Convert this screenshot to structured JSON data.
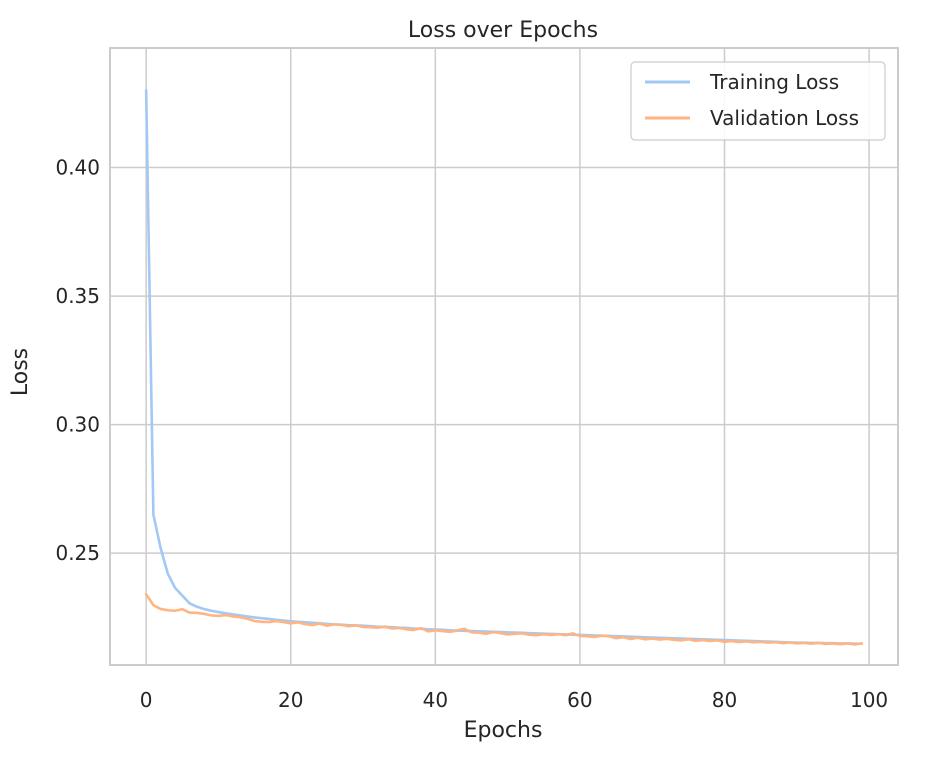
{
  "chart_data": {
    "type": "line",
    "title": "Loss over Epochs",
    "xlabel": "Epochs",
    "ylabel": "Loss",
    "xlim": [
      -5,
      104
    ],
    "ylim": [
      0.2065,
      0.4465
    ],
    "x_ticks": [
      0,
      20,
      40,
      60,
      80,
      100
    ],
    "x_tick_labels": [
      "0",
      "20",
      "40",
      "60",
      "80",
      "100"
    ],
    "y_ticks": [
      0.25,
      0.3,
      0.35,
      0.4
    ],
    "y_tick_labels": [
      "0.25",
      "0.30",
      "0.35",
      "0.40"
    ],
    "grid": true,
    "legend_position": "top-right",
    "x": [
      0,
      1,
      2,
      3,
      4,
      5,
      6,
      7,
      8,
      9,
      10,
      11,
      12,
      13,
      14,
      15,
      16,
      17,
      18,
      19,
      20,
      21,
      22,
      23,
      24,
      25,
      26,
      27,
      28,
      29,
      30,
      31,
      32,
      33,
      34,
      35,
      36,
      37,
      38,
      39,
      40,
      41,
      42,
      43,
      44,
      45,
      46,
      47,
      48,
      49,
      50,
      51,
      52,
      53,
      54,
      55,
      56,
      57,
      58,
      59,
      60,
      61,
      62,
      63,
      64,
      65,
      66,
      67,
      68,
      69,
      70,
      71,
      72,
      73,
      74,
      75,
      76,
      77,
      78,
      79,
      80,
      81,
      82,
      83,
      84,
      85,
      86,
      87,
      88,
      89,
      90,
      91,
      92,
      93,
      94,
      95,
      96,
      97,
      98,
      99
    ],
    "series": [
      {
        "name": "Training Loss",
        "color": "#a1c9f4",
        "values": [
          0.43,
          0.265,
          0.252,
          0.242,
          0.2365,
          0.2335,
          0.2305,
          0.2292,
          0.2283,
          0.2276,
          0.2271,
          0.2266,
          0.2262,
          0.2258,
          0.2254,
          0.225,
          0.2247,
          0.2244,
          0.2241,
          0.2238,
          0.2235,
          0.2233,
          0.2231,
          0.2229,
          0.2227,
          0.2225,
          0.2223,
          0.2222,
          0.222,
          0.2219,
          0.2218,
          0.2216,
          0.2214,
          0.2213,
          0.2212,
          0.221,
          0.2209,
          0.2207,
          0.2206,
          0.2204,
          0.2203,
          0.2202,
          0.22,
          0.2199,
          0.2198,
          0.2197,
          0.2196,
          0.2195,
          0.2194,
          0.2193,
          0.2192,
          0.2191,
          0.219,
          0.2189,
          0.2188,
          0.2187,
          0.2186,
          0.2185,
          0.2184,
          0.2183,
          0.2182,
          0.2181,
          0.218,
          0.2179,
          0.2178,
          0.2177,
          0.2176,
          0.2175,
          0.2174,
          0.2173,
          0.2172,
          0.2171,
          0.217,
          0.2169,
          0.2168,
          0.2167,
          0.2166,
          0.2165,
          0.2164,
          0.2163,
          0.2162,
          0.2161,
          0.216,
          0.2159,
          0.2158,
          0.2157,
          0.2156,
          0.2155,
          0.2154,
          0.2153,
          0.2152,
          0.2152,
          0.2151,
          0.2151,
          0.215,
          0.215,
          0.2149,
          0.2149,
          0.2148,
          0.2148
        ]
      },
      {
        "name": "Validation Loss",
        "color": "#ffb482",
        "values": [
          0.234,
          0.2298,
          0.2283,
          0.2278,
          0.2276,
          0.2282,
          0.2269,
          0.2268,
          0.2264,
          0.2258,
          0.2256,
          0.2259,
          0.2254,
          0.2251,
          0.2245,
          0.2236,
          0.2233,
          0.2232,
          0.2236,
          0.2232,
          0.2227,
          0.2231,
          0.2224,
          0.222,
          0.2226,
          0.2218,
          0.2223,
          0.2221,
          0.2216,
          0.2219,
          0.2213,
          0.2212,
          0.221,
          0.2214,
          0.2207,
          0.2209,
          0.2204,
          0.2201,
          0.2208,
          0.2196,
          0.22,
          0.2197,
          0.2194,
          0.2199,
          0.2206,
          0.2192,
          0.2191,
          0.2186,
          0.2193,
          0.2189,
          0.2184,
          0.2186,
          0.2188,
          0.2183,
          0.2181,
          0.2185,
          0.2182,
          0.2185,
          0.2181,
          0.2188,
          0.2178,
          0.2177,
          0.2174,
          0.2179,
          0.2177,
          0.2169,
          0.2173,
          0.2166,
          0.2171,
          0.2165,
          0.2168,
          0.2164,
          0.2167,
          0.2163,
          0.2161,
          0.2165,
          0.2159,
          0.2162,
          0.2158,
          0.2161,
          0.2155,
          0.2158,
          0.2154,
          0.2157,
          0.2153,
          0.2155,
          0.2152,
          0.2154,
          0.215,
          0.2153,
          0.2149,
          0.2151,
          0.2148,
          0.2151,
          0.2147,
          0.2149,
          0.2146,
          0.2149,
          0.2145,
          0.2149
        ]
      }
    ]
  }
}
